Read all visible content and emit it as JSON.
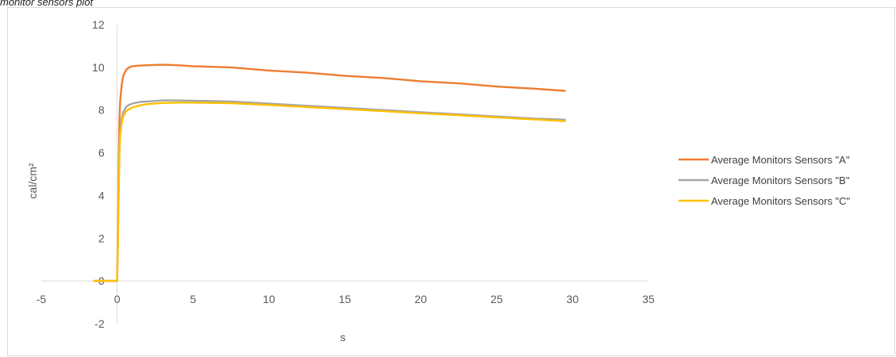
{
  "caption": "monitor sensors plot",
  "chart_data": {
    "type": "line",
    "title": "",
    "xlabel": "s",
    "ylabel": "cal/cm²",
    "xlim": [
      -5,
      35
    ],
    "ylim": [
      -2,
      12
    ],
    "xticks": [
      -5,
      0,
      5,
      10,
      15,
      20,
      25,
      30,
      35
    ],
    "yticks": [
      -2,
      0,
      2,
      4,
      6,
      8,
      10,
      12
    ],
    "grid": false,
    "legend": "right",
    "series": [
      {
        "name": "Average Monitors Sensors \"A\"",
        "color": "#ED7D31",
        "x": [
          -1.5,
          -0.5,
          0,
          0.05,
          0.1,
          0.15,
          0.2,
          0.3,
          0.4,
          0.6,
          0.8,
          1,
          1.5,
          2,
          3,
          4,
          5,
          7.5,
          10,
          12.5,
          15,
          17.5,
          20,
          22.5,
          25,
          27.5,
          29.5
        ],
        "y": [
          0,
          0,
          0,
          2.5,
          5.2,
          7.5,
          8.4,
          9.2,
          9.6,
          9.9,
          10.0,
          10.05,
          10.08,
          10.1,
          10.12,
          10.1,
          10.05,
          10.0,
          9.85,
          9.75,
          9.6,
          9.5,
          9.35,
          9.25,
          9.1,
          9.0,
          8.9
        ]
      },
      {
        "name": "Average Monitors Sensors \"B\"",
        "color": "#A5A5A5",
        "x": [
          -1.5,
          -0.5,
          0,
          0.05,
          0.1,
          0.15,
          0.2,
          0.3,
          0.4,
          0.6,
          0.8,
          1,
          1.5,
          2,
          3,
          4,
          5,
          7.5,
          10,
          12.5,
          15,
          17.5,
          20,
          22.5,
          25,
          27.5,
          29.5
        ],
        "y": [
          0,
          0,
          0,
          2.0,
          4.2,
          6.2,
          7.0,
          7.6,
          7.9,
          8.15,
          8.25,
          8.3,
          8.38,
          8.4,
          8.45,
          8.45,
          8.44,
          8.4,
          8.3,
          8.2,
          8.1,
          8.0,
          7.9,
          7.8,
          7.7,
          7.6,
          7.55
        ]
      },
      {
        "name": "Average Monitors Sensors \"C\"",
        "color": "#FFC000",
        "x": [
          -1.5,
          -0.5,
          0,
          0.05,
          0.1,
          0.15,
          0.2,
          0.3,
          0.4,
          0.6,
          0.8,
          1,
          1.5,
          2,
          3,
          4,
          5,
          7.5,
          10,
          12.5,
          15,
          17.5,
          20,
          22.5,
          25,
          27.5,
          29.5
        ],
        "y": [
          0,
          0,
          0,
          1.8,
          4.0,
          6.0,
          6.8,
          7.4,
          7.7,
          7.95,
          8.05,
          8.12,
          8.22,
          8.28,
          8.33,
          8.35,
          8.35,
          8.32,
          8.24,
          8.14,
          8.05,
          7.95,
          7.85,
          7.76,
          7.66,
          7.56,
          7.48
        ]
      }
    ]
  }
}
